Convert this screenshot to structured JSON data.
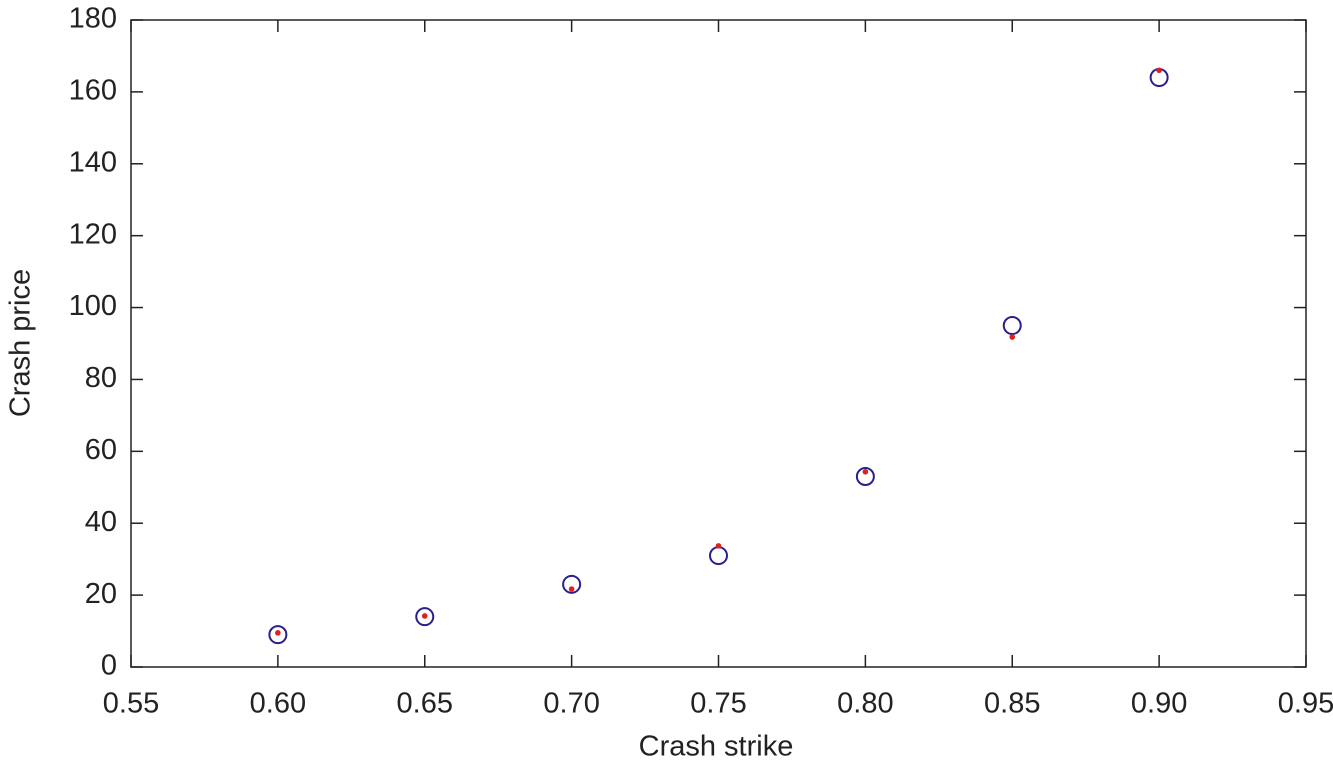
{
  "chart_data": {
    "type": "scatter",
    "xlabel": "Crash strike",
    "ylabel": "Crash price",
    "x": [
      0.6,
      0.65,
      0.7,
      0.75,
      0.8,
      0.85,
      0.9
    ],
    "series": [
      {
        "color": "#2a1f8c",
        "marker": "open-circle",
        "values": [
          9,
          14,
          23,
          31,
          53,
          95,
          164
        ]
      },
      {
        "color": "#e02020",
        "marker": "dot",
        "values": [
          9.5,
          14.2,
          21.7,
          33.7,
          54.3,
          91.8,
          166
        ]
      }
    ],
    "xlim": [
      0.55,
      0.95
    ],
    "xticks": [
      0.55,
      {
        "value": 0.6,
        "label": "0.60"
      },
      0.65,
      {
        "value": 0.7,
        "label": "0.70"
      },
      0.75,
      {
        "value": 0.8,
        "label": "0.80"
      },
      0.85,
      {
        "value": 0.9,
        "label": "0.90"
      },
      0.95
    ],
    "ylim": [
      0,
      180
    ],
    "yticks": [
      0,
      20,
      40,
      60,
      80,
      100,
      120,
      140,
      160,
      180
    ],
    "grid": false
  }
}
